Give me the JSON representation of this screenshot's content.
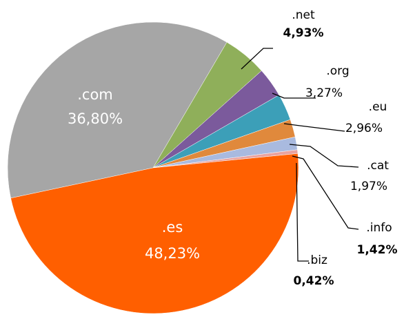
{
  "chart_data": {
    "type": "pie",
    "categories": [
      ".com",
      ".net",
      ".org",
      ".eu",
      ".cat",
      ".info",
      ".biz",
      ".es"
    ],
    "values": [
      36.8,
      4.93,
      3.27,
      2.96,
      1.97,
      1.42,
      0.42,
      48.23
    ],
    "value_labels": [
      "36,80%",
      "4,93%",
      "3,27%",
      "2,96%",
      "1,97%",
      "1,42%",
      "0,42%",
      "48,23%"
    ],
    "colors": [
      "#a6a6a6",
      "#8faf5a",
      "#7b5a9c",
      "#3c9fb8",
      "#e0893c",
      "#a9badf",
      "#e9a3a0",
      "#ff5f00"
    ]
  }
}
